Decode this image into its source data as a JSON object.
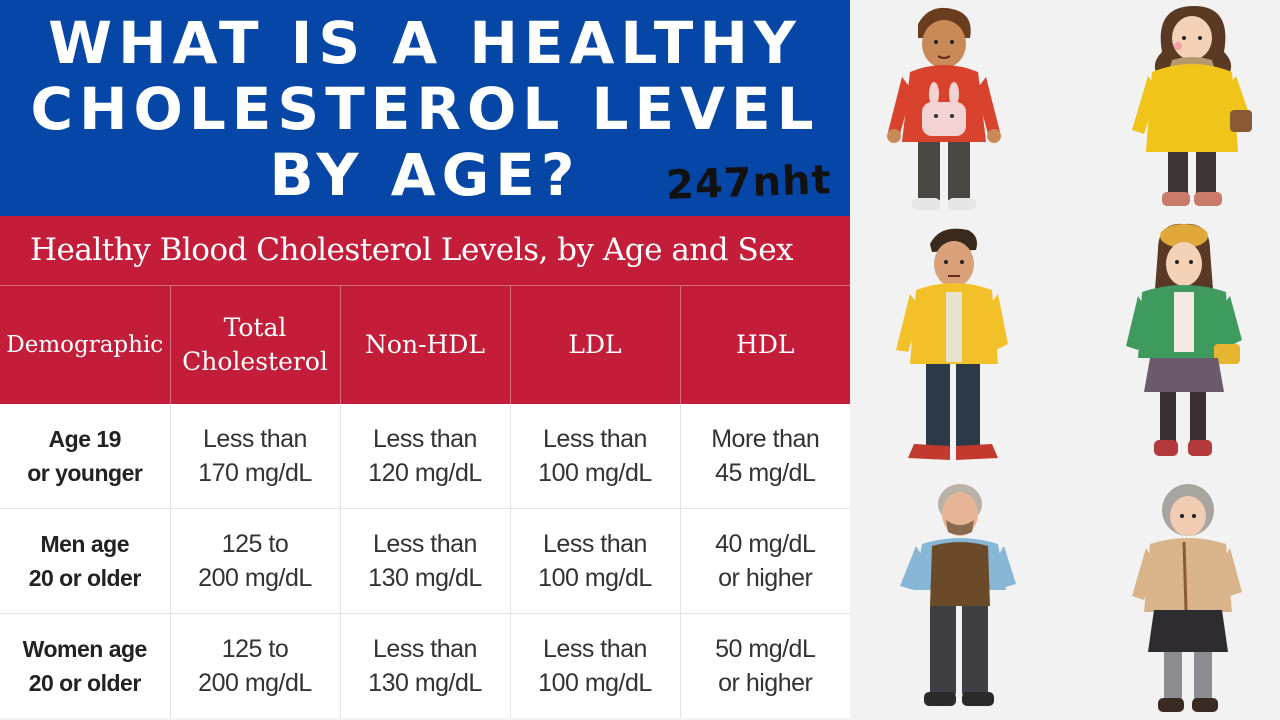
{
  "banner": {
    "title": "WHAT IS A HEALTHY\nCHOLESTEROL LEVEL\nBY AGE?",
    "watermark": "247nht",
    "background_color": "#0646a6"
  },
  "chart": {
    "title": "Healthy Blood Cholesterol Levels, by Age and Sex",
    "header_color": "#c41d3a",
    "columns": [
      "Demographic",
      "Total Cholesterol",
      "Non-HDL",
      "LDL",
      "HDL"
    ],
    "rows": [
      {
        "demographic": "Age 19\nor younger",
        "total": "Less than\n170 mg/dL",
        "non_hdl": "Less than\n120 mg/dL",
        "ldl": "Less than\n100 mg/dL",
        "hdl": "More than\n45 mg/dL"
      },
      {
        "demographic": "Men age\n20 or older",
        "total": "125 to\n200 mg/dL",
        "non_hdl": "Less than\n130 mg/dL",
        "ldl": "Less than\n100 mg/dL",
        "hdl": "40 mg/dL\nor higher"
      },
      {
        "demographic": "Women age\n20 or older",
        "total": "125 to\n200 mg/dL",
        "non_hdl": "Less than\n130 mg/dL",
        "ldl": "Less than\n100 mg/dL",
        "hdl": "50 mg/dL\nor higher"
      }
    ]
  },
  "illustration": {
    "figures": [
      {
        "icon": "boy-in-red-hoodie-icon",
        "jacket_color": "#d9432d"
      },
      {
        "icon": "girl-in-yellow-coat-icon",
        "jacket_color": "#f0c419"
      },
      {
        "icon": "man-in-yellow-jacket-icon",
        "jacket_color": "#f2c12a"
      },
      {
        "icon": "woman-in-green-jacket-icon",
        "jacket_color": "#3f9a5e"
      },
      {
        "icon": "elderly-man-in-vest-icon",
        "jacket_color": "#6b4a2a"
      },
      {
        "icon": "elderly-woman-in-cardigan-icon",
        "jacket_color": "#d9b48a"
      }
    ]
  }
}
